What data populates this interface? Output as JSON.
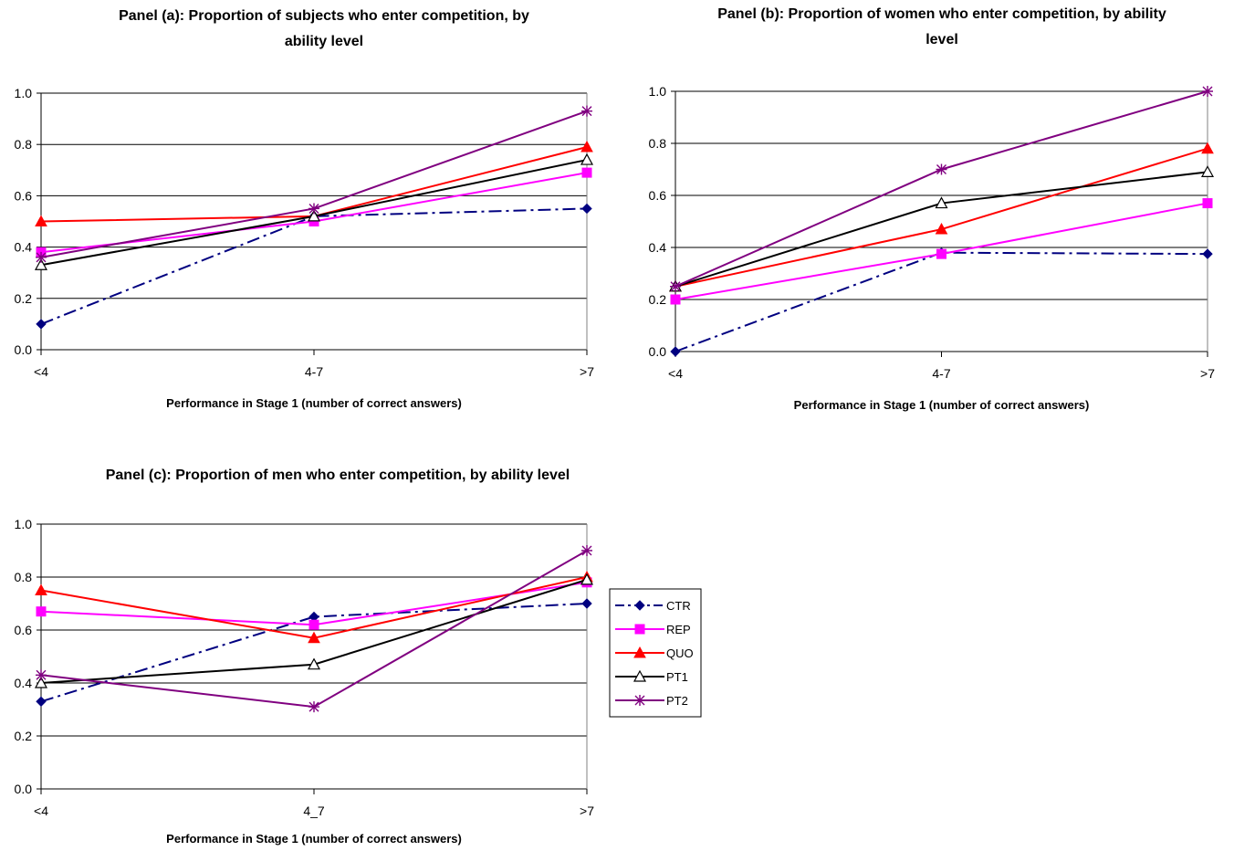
{
  "chart_data": [
    {
      "type": "line",
      "title_lines": [
        "Panel (a): Proportion of subjects who enter competition, by",
        "ability level"
      ],
      "xlabel": "Performance in Stage 1 (number of correct answers)",
      "ylabel": "",
      "categories": [
        "<4",
        "4-7",
        ">7"
      ],
      "ylim": [
        0,
        1
      ],
      "yticks": [
        "0.0",
        "0.2",
        "0.4",
        "0.6",
        "0.8",
        "1.0"
      ],
      "grid": true,
      "series": [
        {
          "name": "CTR",
          "values": [
            0.1,
            0.52,
            0.55
          ]
        },
        {
          "name": "REP",
          "values": [
            0.38,
            0.5,
            0.69
          ]
        },
        {
          "name": "QUO",
          "values": [
            0.5,
            0.52,
            0.79
          ]
        },
        {
          "name": "PT1",
          "values": [
            0.33,
            0.52,
            0.74
          ]
        },
        {
          "name": "PT2",
          "values": [
            0.36,
            0.55,
            0.93
          ]
        }
      ]
    },
    {
      "type": "line",
      "title_lines": [
        "Panel (b): Proportion of women who enter competition, by ability",
        "level"
      ],
      "xlabel": "Performance in Stage 1 (number of correct answers)",
      "ylabel": "",
      "categories": [
        "<4",
        "4-7",
        ">7"
      ],
      "ylim": [
        0,
        1
      ],
      "yticks": [
        "0.0",
        "0.2",
        "0.4",
        "0.6",
        "0.8",
        "1.0"
      ],
      "grid": true,
      "series": [
        {
          "name": "CTR",
          "values": [
            0.0,
            0.38,
            0.375
          ]
        },
        {
          "name": "REP",
          "values": [
            0.2,
            0.375,
            0.57
          ]
        },
        {
          "name": "QUO",
          "values": [
            0.25,
            0.47,
            0.78
          ]
        },
        {
          "name": "PT1",
          "values": [
            0.25,
            0.57,
            0.69
          ]
        },
        {
          "name": "PT2",
          "values": [
            0.25,
            0.7,
            1.0
          ]
        }
      ]
    },
    {
      "type": "line",
      "title_lines": [
        "Panel (c): Proportion of men who enter competition, by ability level"
      ],
      "xlabel": "Performance in Stage 1 (number of correct answers)",
      "ylabel": "",
      "categories": [
        "<4",
        "4_7",
        ">7"
      ],
      "ylim": [
        0,
        1
      ],
      "yticks": [
        "0.0",
        "0.2",
        "0.4",
        "0.6",
        "0.8",
        "1.0"
      ],
      "grid": true,
      "legend": "right",
      "series": [
        {
          "name": "CTR",
          "values": [
            0.33,
            0.65,
            0.7
          ]
        },
        {
          "name": "REP",
          "values": [
            0.67,
            0.62,
            0.78
          ]
        },
        {
          "name": "QUO",
          "values": [
            0.75,
            0.57,
            0.8
          ]
        },
        {
          "name": "PT1",
          "values": [
            0.4,
            0.47,
            0.79
          ]
        },
        {
          "name": "PT2",
          "values": [
            0.43,
            0.31,
            0.9
          ]
        }
      ]
    }
  ],
  "legend": {
    "items": [
      {
        "name": "CTR",
        "color": "#000080",
        "marker": "diamond",
        "dash": "dashdot"
      },
      {
        "name": "REP",
        "color": "#ff00ff",
        "marker": "square",
        "dash": "solid"
      },
      {
        "name": "QUO",
        "color": "#ff0000",
        "marker": "triangle",
        "dash": "solid"
      },
      {
        "name": "PT1",
        "color": "#000000",
        "marker": "triangle-open",
        "dash": "solid"
      },
      {
        "name": "PT2",
        "color": "#800080",
        "marker": "star",
        "dash": "solid"
      }
    ]
  }
}
